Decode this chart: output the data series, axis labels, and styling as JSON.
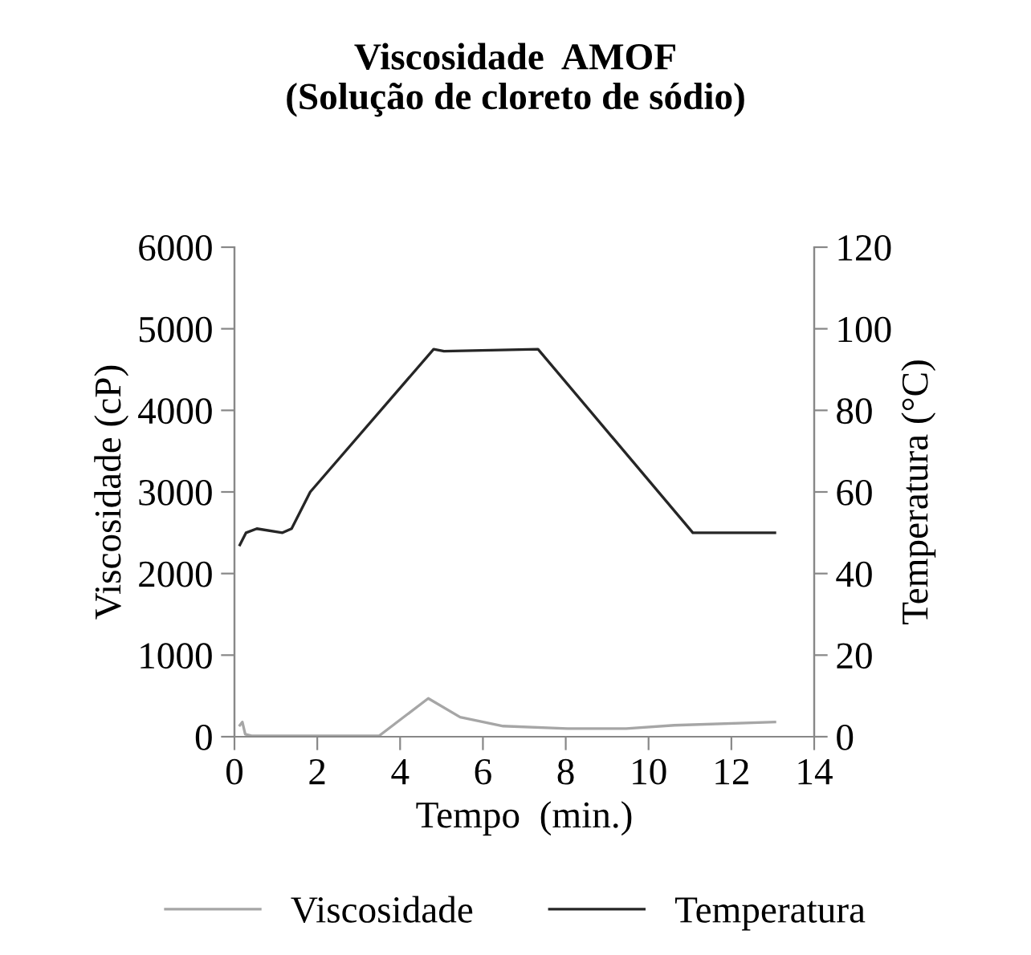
{
  "chart_data": {
    "type": "line",
    "title": "Viscosidade  AMOF\n(Solução de cloreto de sódio)",
    "xlabel": "Tempo  (min.)",
    "ylabel": "Viscosidade (cP)",
    "y2label": "Temperatura (°C)",
    "xlim": [
      0,
      14
    ],
    "xticks": [
      0,
      2,
      4,
      6,
      8,
      10,
      12,
      14
    ],
    "ylim": [
      0,
      6000
    ],
    "yticks": [
      0,
      1000,
      2000,
      3000,
      4000,
      5000,
      6000
    ],
    "y2lim": [
      0,
      120
    ],
    "y2ticks": [
      0,
      20,
      40,
      60,
      80,
      100,
      120
    ],
    "grid": false,
    "legend": "bottom",
    "marker": "none",
    "line_style": "solid",
    "series": [
      {
        "name": "Viscosidade",
        "color": "#a6a6a6",
        "x": [
          0.13,
          0.19,
          0.26,
          0.41,
          3.49,
          4.68,
          5.45,
          6.49,
          8.04,
          9.46,
          10.62,
          13.05
        ],
        "values": [
          140,
          180,
          30,
          10,
          10,
          470,
          240,
          130,
          100,
          100,
          140,
          180
        ]
      },
      {
        "name": "Temperatura",
        "color": "#262626",
        "axis": "y2",
        "x": [
          0.13,
          0.28,
          0.54,
          1.16,
          1.38,
          1.83,
          4.81,
          5.06,
          7.33,
          11.07,
          13.05
        ],
        "values": [
          47,
          50,
          51,
          50,
          51,
          60,
          95,
          94.5,
          95,
          50,
          50
        ]
      }
    ]
  }
}
